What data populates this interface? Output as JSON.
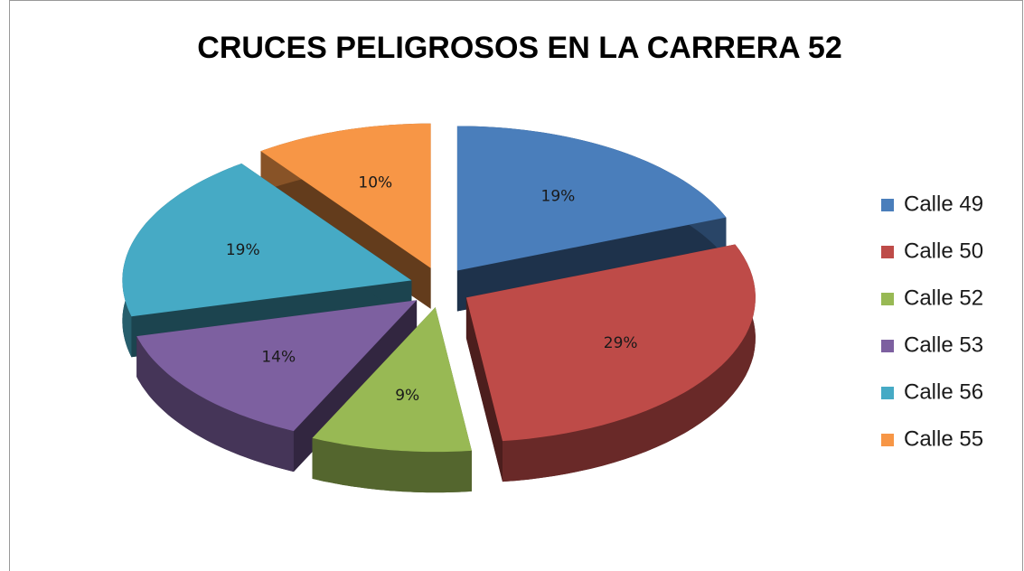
{
  "chart_data": {
    "type": "pie",
    "title": "CRUCES PELIGROSOS EN LA CARRERA 52",
    "categories": [
      "Calle 49",
      "Calle 50",
      "Calle 52",
      "Calle 53",
      "Calle 56",
      "Calle 55"
    ],
    "values": [
      19,
      29,
      9,
      14,
      19,
      10
    ],
    "value_labels": [
      "19%",
      "29%",
      "9%",
      "14%",
      "19%",
      "10%"
    ],
    "colors": [
      "#4a7ebb",
      "#be4b48",
      "#98b954",
      "#7d60a0",
      "#46aac5",
      "#f79646"
    ],
    "legend": "right"
  }
}
